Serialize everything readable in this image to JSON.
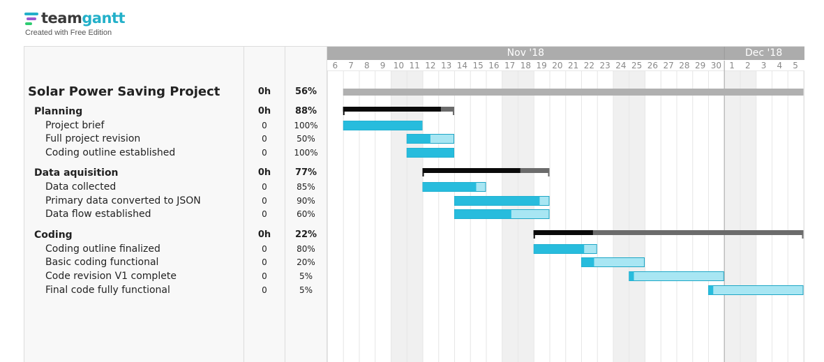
{
  "brand": {
    "name_part1": "team",
    "name_part2": "gantt",
    "subtitle": "Created with Free Edition",
    "logo_colors": [
      "#23b0c9",
      "#9b59d0",
      "#2ecc71"
    ]
  },
  "timeline": {
    "months": [
      {
        "label": "Nov '18",
        "start_index": 0,
        "end_index": 24
      },
      {
        "label": "Dec '18",
        "start_index": 25,
        "end_index": 29
      }
    ],
    "days": [
      "6",
      "7",
      "8",
      "9",
      "10",
      "11",
      "12",
      "13",
      "14",
      "15",
      "16",
      "17",
      "18",
      "19",
      "20",
      "21",
      "22",
      "23",
      "24",
      "25",
      "26",
      "27",
      "28",
      "29",
      "30",
      "1",
      "2",
      "3",
      "4",
      "5"
    ],
    "shaded_day_indices": [
      4,
      5,
      11,
      12,
      18,
      19,
      25,
      26
    ],
    "today_index": 25,
    "colors": {
      "header": "#acacac",
      "bar_done": "#27bcdd",
      "bar_remaining": "#a8e6f3",
      "bar_border": "#1ea6c5",
      "group_done": "#0a0a0a",
      "group_remaining": "#6b6b6b",
      "project_bar": "#b0b0b0",
      "weekend": "#f0f0f0"
    }
  },
  "rows": [
    {
      "type": "project",
      "name": "Solar Power Saving Project",
      "hours": "0h",
      "percent": "56%",
      "start": 1,
      "end": 29,
      "progress": 0.56
    },
    {
      "type": "group",
      "name": "Planning",
      "hours": "0h",
      "percent": "88%",
      "start": 1,
      "end": 7,
      "progress": 0.88
    },
    {
      "type": "task",
      "name": "Project brief",
      "hours": "0",
      "percent": "100%",
      "start": 1,
      "end": 5,
      "progress": 1.0
    },
    {
      "type": "task",
      "name": "Full project revision",
      "hours": "0",
      "percent": "50%",
      "start": 5,
      "end": 7,
      "progress": 0.5
    },
    {
      "type": "task",
      "name": "Coding outline established",
      "hours": "0",
      "percent": "100%",
      "start": 5,
      "end": 7,
      "progress": 1.0
    },
    {
      "type": "group",
      "name": "Data aquisition",
      "hours": "0h",
      "percent": "77%",
      "start": 6,
      "end": 13,
      "progress": 0.77
    },
    {
      "type": "task",
      "name": "Data collected",
      "hours": "0",
      "percent": "85%",
      "start": 6,
      "end": 9,
      "progress": 0.85
    },
    {
      "type": "task",
      "name": "Primary data converted to JSON",
      "hours": "0",
      "percent": "90%",
      "start": 8,
      "end": 13,
      "progress": 0.9
    },
    {
      "type": "task",
      "name": "Data flow established",
      "hours": "0",
      "percent": "60%",
      "start": 8,
      "end": 13,
      "progress": 0.6
    },
    {
      "type": "group",
      "name": "Coding",
      "hours": "0h",
      "percent": "22%",
      "start": 13,
      "end": 29,
      "progress": 0.22
    },
    {
      "type": "task",
      "name": "Coding outline finalized",
      "hours": "0",
      "percent": "80%",
      "start": 13,
      "end": 16,
      "progress": 0.8
    },
    {
      "type": "task",
      "name": "Basic coding functional",
      "hours": "0",
      "percent": "20%",
      "start": 16,
      "end": 19,
      "progress": 0.2
    },
    {
      "type": "task",
      "name": "Code revision V1 complete",
      "hours": "0",
      "percent": "5%",
      "start": 19,
      "end": 24,
      "progress": 0.05
    },
    {
      "type": "task",
      "name": "Final code fully functional",
      "hours": "0",
      "percent": "5%",
      "start": 24,
      "end": 29,
      "progress": 0.05
    }
  ]
}
